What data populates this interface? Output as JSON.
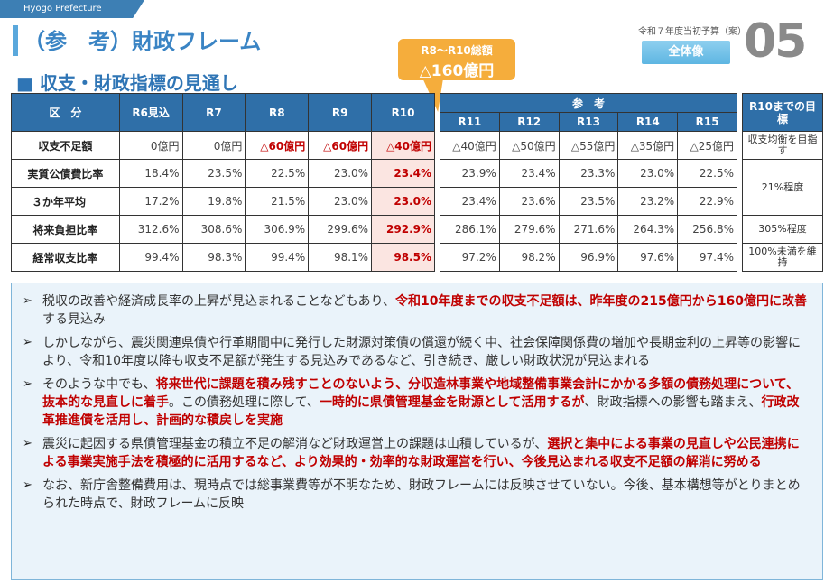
{
  "header": {
    "prefecture": "Hyogo Prefecture",
    "title": "（参　考）財政フレーム",
    "subtitle": "■ 収支・財政指標の見通し",
    "budget_label": "令和７年度当初予算（案）",
    "scope": "全体像",
    "page_number": "05"
  },
  "callout": {
    "line1": "R8～R10総額",
    "line2": "△160億円"
  },
  "main_table": {
    "headers": [
      "区　分",
      "R6見込",
      "R7",
      "R8",
      "R9",
      "R10"
    ],
    "rows": [
      {
        "label": "収支不足額",
        "values": [
          "0億円",
          "0億円",
          "△60億円",
          "△60億円",
          "△40億円"
        ]
      },
      {
        "label": "実質公債費比率",
        "values": [
          "18.4%",
          "23.5%",
          "22.5%",
          "23.0%",
          "23.4%"
        ]
      },
      {
        "label": "３か年平均",
        "values": [
          "17.2%",
          "19.8%",
          "21.5%",
          "23.0%",
          "23.0%"
        ]
      },
      {
        "label": "将来負担比率",
        "values": [
          "312.6%",
          "308.6%",
          "306.9%",
          "299.6%",
          "292.9%"
        ]
      },
      {
        "label": "経常収支比率",
        "values": [
          "99.4%",
          "98.3%",
          "99.4%",
          "98.1%",
          "98.5%"
        ]
      }
    ]
  },
  "ref_table": {
    "group_header": "参　考",
    "headers": [
      "R11",
      "R12",
      "R13",
      "R14",
      "R15"
    ],
    "rows": [
      [
        "△40億円",
        "△50億円",
        "△55億円",
        "△35億円",
        "△25億円"
      ],
      [
        "23.9%",
        "23.4%",
        "23.3%",
        "23.0%",
        "22.5%"
      ],
      [
        "23.4%",
        "23.6%",
        "23.5%",
        "23.2%",
        "22.9%"
      ],
      [
        "286.1%",
        "279.6%",
        "271.6%",
        "264.3%",
        "256.8%"
      ],
      [
        "97.2%",
        "98.2%",
        "96.9%",
        "97.6%",
        "97.4%"
      ]
    ]
  },
  "goal_table": {
    "header": "R10までの目標",
    "rows": [
      "収支均衡を目指す",
      "21%程度",
      "305%程度",
      "100%未満を維持"
    ]
  },
  "bullets": [
    {
      "segments": [
        {
          "text": "税収の改善や経済成長率の上昇が見込まれることなどもあり、",
          "emph": false
        },
        {
          "text": "令和10年度までの収支不足額は、昨年度の215億円から160億円に改善",
          "emph": true
        },
        {
          "text": "する見込み",
          "emph": false
        }
      ]
    },
    {
      "segments": [
        {
          "text": "しかしながら、震災関連県債や行革期間中に発行した財源対策債の償還が続く中、社会保障関係費の増加や長期金利の上昇等の影響により、令和10年度以降も収支不足額が発生する見込みであるなど、引き続き、厳しい財政状況が見込まれる",
          "emph": false
        }
      ]
    },
    {
      "segments": [
        {
          "text": "そのような中でも、",
          "emph": false
        },
        {
          "text": "将来世代に課題を積み残すことのないよう、分収造林事業や地域整備事業会計にかかる多額の債務処理について、抜本的な見直しに着手",
          "emph": true
        },
        {
          "text": "。この債務処理に際して、",
          "emph": false
        },
        {
          "text": "一時的に県債管理基金を財源として活用するが",
          "emph": true
        },
        {
          "text": "、財政指標への影響も踏まえ、",
          "emph": false
        },
        {
          "text": "行政改革推進債を活用し、計画的な積戻しを実施",
          "emph": true
        }
      ]
    },
    {
      "segments": [
        {
          "text": "震災に起因する県債管理基金の積立不足の解消など財政運営上の課題は山積しているが、",
          "emph": false
        },
        {
          "text": "選択と集中による事業の見直しや公民連携による事業実施手法を積極的に活用するなど、より効果的・効率的な財政運営を行い、今後見込まれる収支不足額の解消に努める",
          "emph": true
        }
      ]
    },
    {
      "segments": [
        {
          "text": "なお、新庁舎整備費用は、現時点では総事業費等が不明なため、財政フレームには反映させていない。今後、基本構想等がとりまとめられた時点で、財政フレームに反映",
          "emph": false
        }
      ]
    }
  ],
  "colors": {
    "header_blue": "#2f6fa8",
    "emphasis_red": "#c00000",
    "callout_orange": "#f5ad3c"
  }
}
